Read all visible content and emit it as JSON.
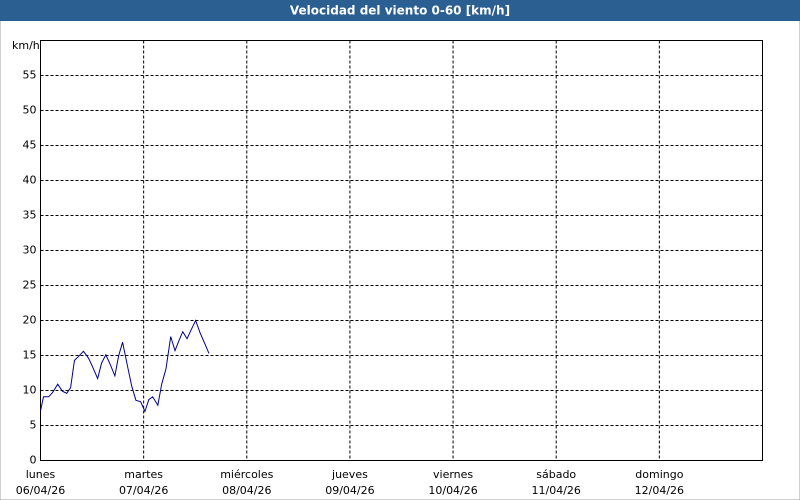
{
  "chart_data": {
    "type": "line",
    "title": "Velocidad del viento 0-60 [km/h]",
    "y_label": "km/h",
    "x": [
      0,
      0.7,
      1.9,
      2.8,
      4.0,
      5.1,
      6.1,
      7.0,
      7.9,
      8.9,
      10.0,
      11.2,
      12.1,
      13.3,
      14.2,
      15.2,
      16.1,
      17.3,
      18.2,
      19.1,
      20.1,
      21.2,
      22.2,
      23.3,
      24.3,
      25.2,
      26.1,
      27.3,
      28.2,
      29.2,
      30.3,
      31.3,
      32.2,
      33.1,
      34.1,
      35.0,
      36.1,
      37.1,
      38.3,
      39.2
    ],
    "series": [
      {
        "color": "#00008b",
        "values": [
          7.1,
          9.1,
          9.1,
          9.7,
          10.9,
          9.9,
          9.6,
          10.4,
          14.3,
          14.9,
          15.6,
          14.6,
          13.4,
          11.7,
          13.9,
          15.1,
          13.9,
          12.1,
          15.0,
          16.9,
          13.9,
          10.7,
          8.6,
          8.4,
          7.0,
          8.7,
          9.1,
          7.9,
          10.9,
          13.1,
          17.7,
          15.7,
          17.1,
          18.4,
          17.4,
          18.6,
          20.0,
          18.3,
          16.6,
          15.3
        ]
      }
    ],
    "xlim": [
      0,
      168
    ],
    "xticks": [
      {
        "value": 0,
        "label": "lunes"
      },
      {
        "value": 24,
        "label": "martes"
      },
      {
        "value": 48,
        "label": "miércoles"
      },
      {
        "value": 72,
        "label": "jueves"
      },
      {
        "value": 96,
        "label": "viernes"
      },
      {
        "value": 120,
        "label": "sábado"
      },
      {
        "value": 144,
        "label": "domingo"
      }
    ],
    "xtick_dates": [
      "06/04/26",
      "07/04/26",
      "08/04/26",
      "09/04/26",
      "10/04/26",
      "11/04/26",
      "12/04/26"
    ],
    "ylim": [
      0,
      60
    ],
    "yticks": [
      0,
      5,
      10,
      15,
      20,
      25,
      30,
      35,
      40,
      45,
      50,
      55
    ],
    "grid": true
  }
}
